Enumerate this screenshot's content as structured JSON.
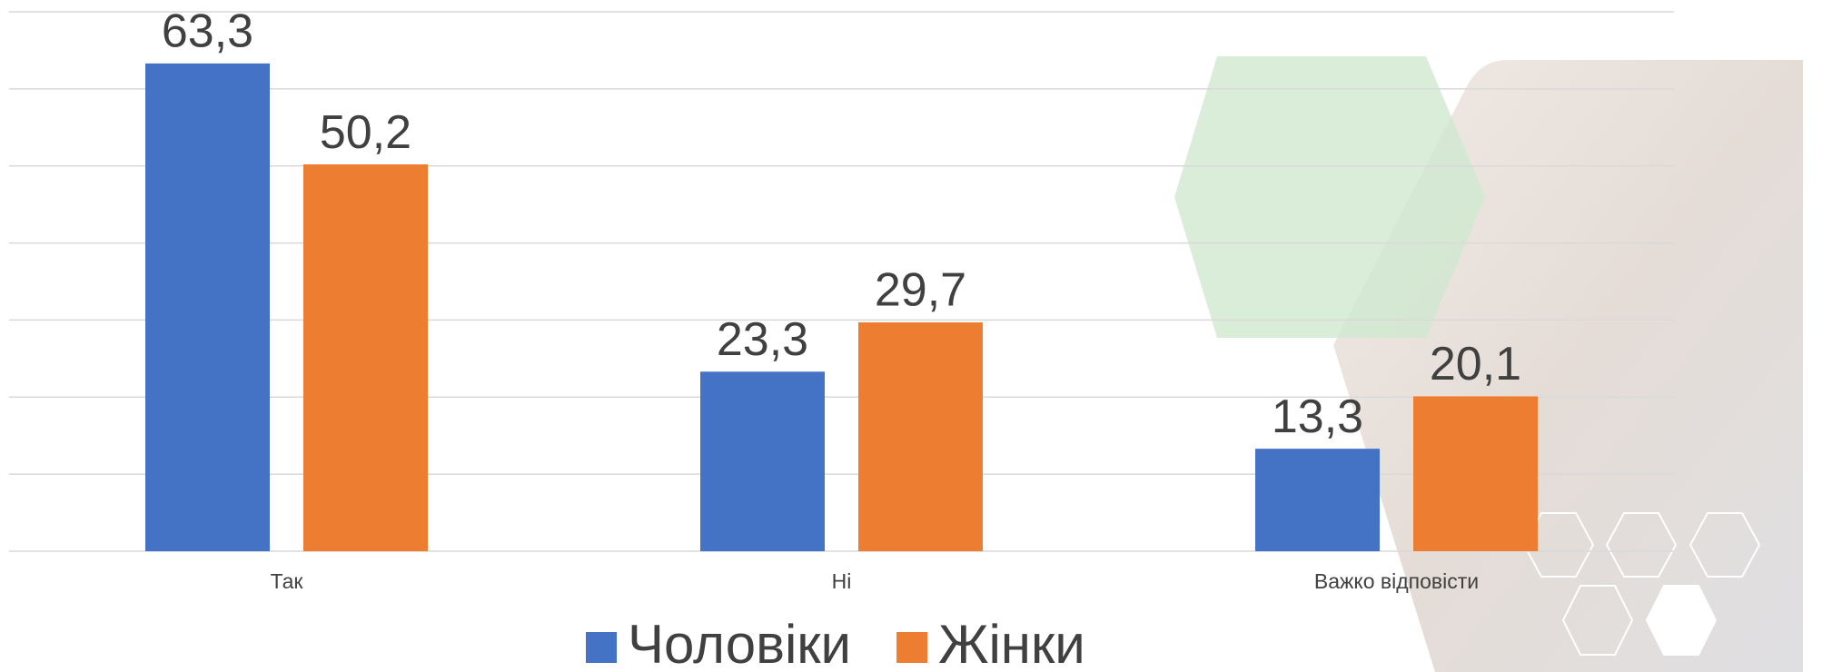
{
  "chart_data": {
    "type": "bar",
    "categories": [
      "Так",
      "Ні",
      "Важко відповісти"
    ],
    "series": [
      {
        "name": "Чоловіки",
        "color": "#4472c4",
        "values": [
          63.3,
          23.3,
          13.3
        ],
        "value_labels": [
          "63,3",
          "23,3",
          "13,3"
        ]
      },
      {
        "name": "Жінки",
        "color": "#ed7d31",
        "values": [
          50.2,
          29.7,
          20.1
        ],
        "value_labels": [
          "50,2",
          "29,7",
          "20,1"
        ]
      }
    ],
    "ylim": [
      0,
      70
    ],
    "yticks": [
      0,
      10,
      20,
      30,
      40,
      50,
      60,
      70
    ],
    "grid": true,
    "legend": "bottom"
  }
}
